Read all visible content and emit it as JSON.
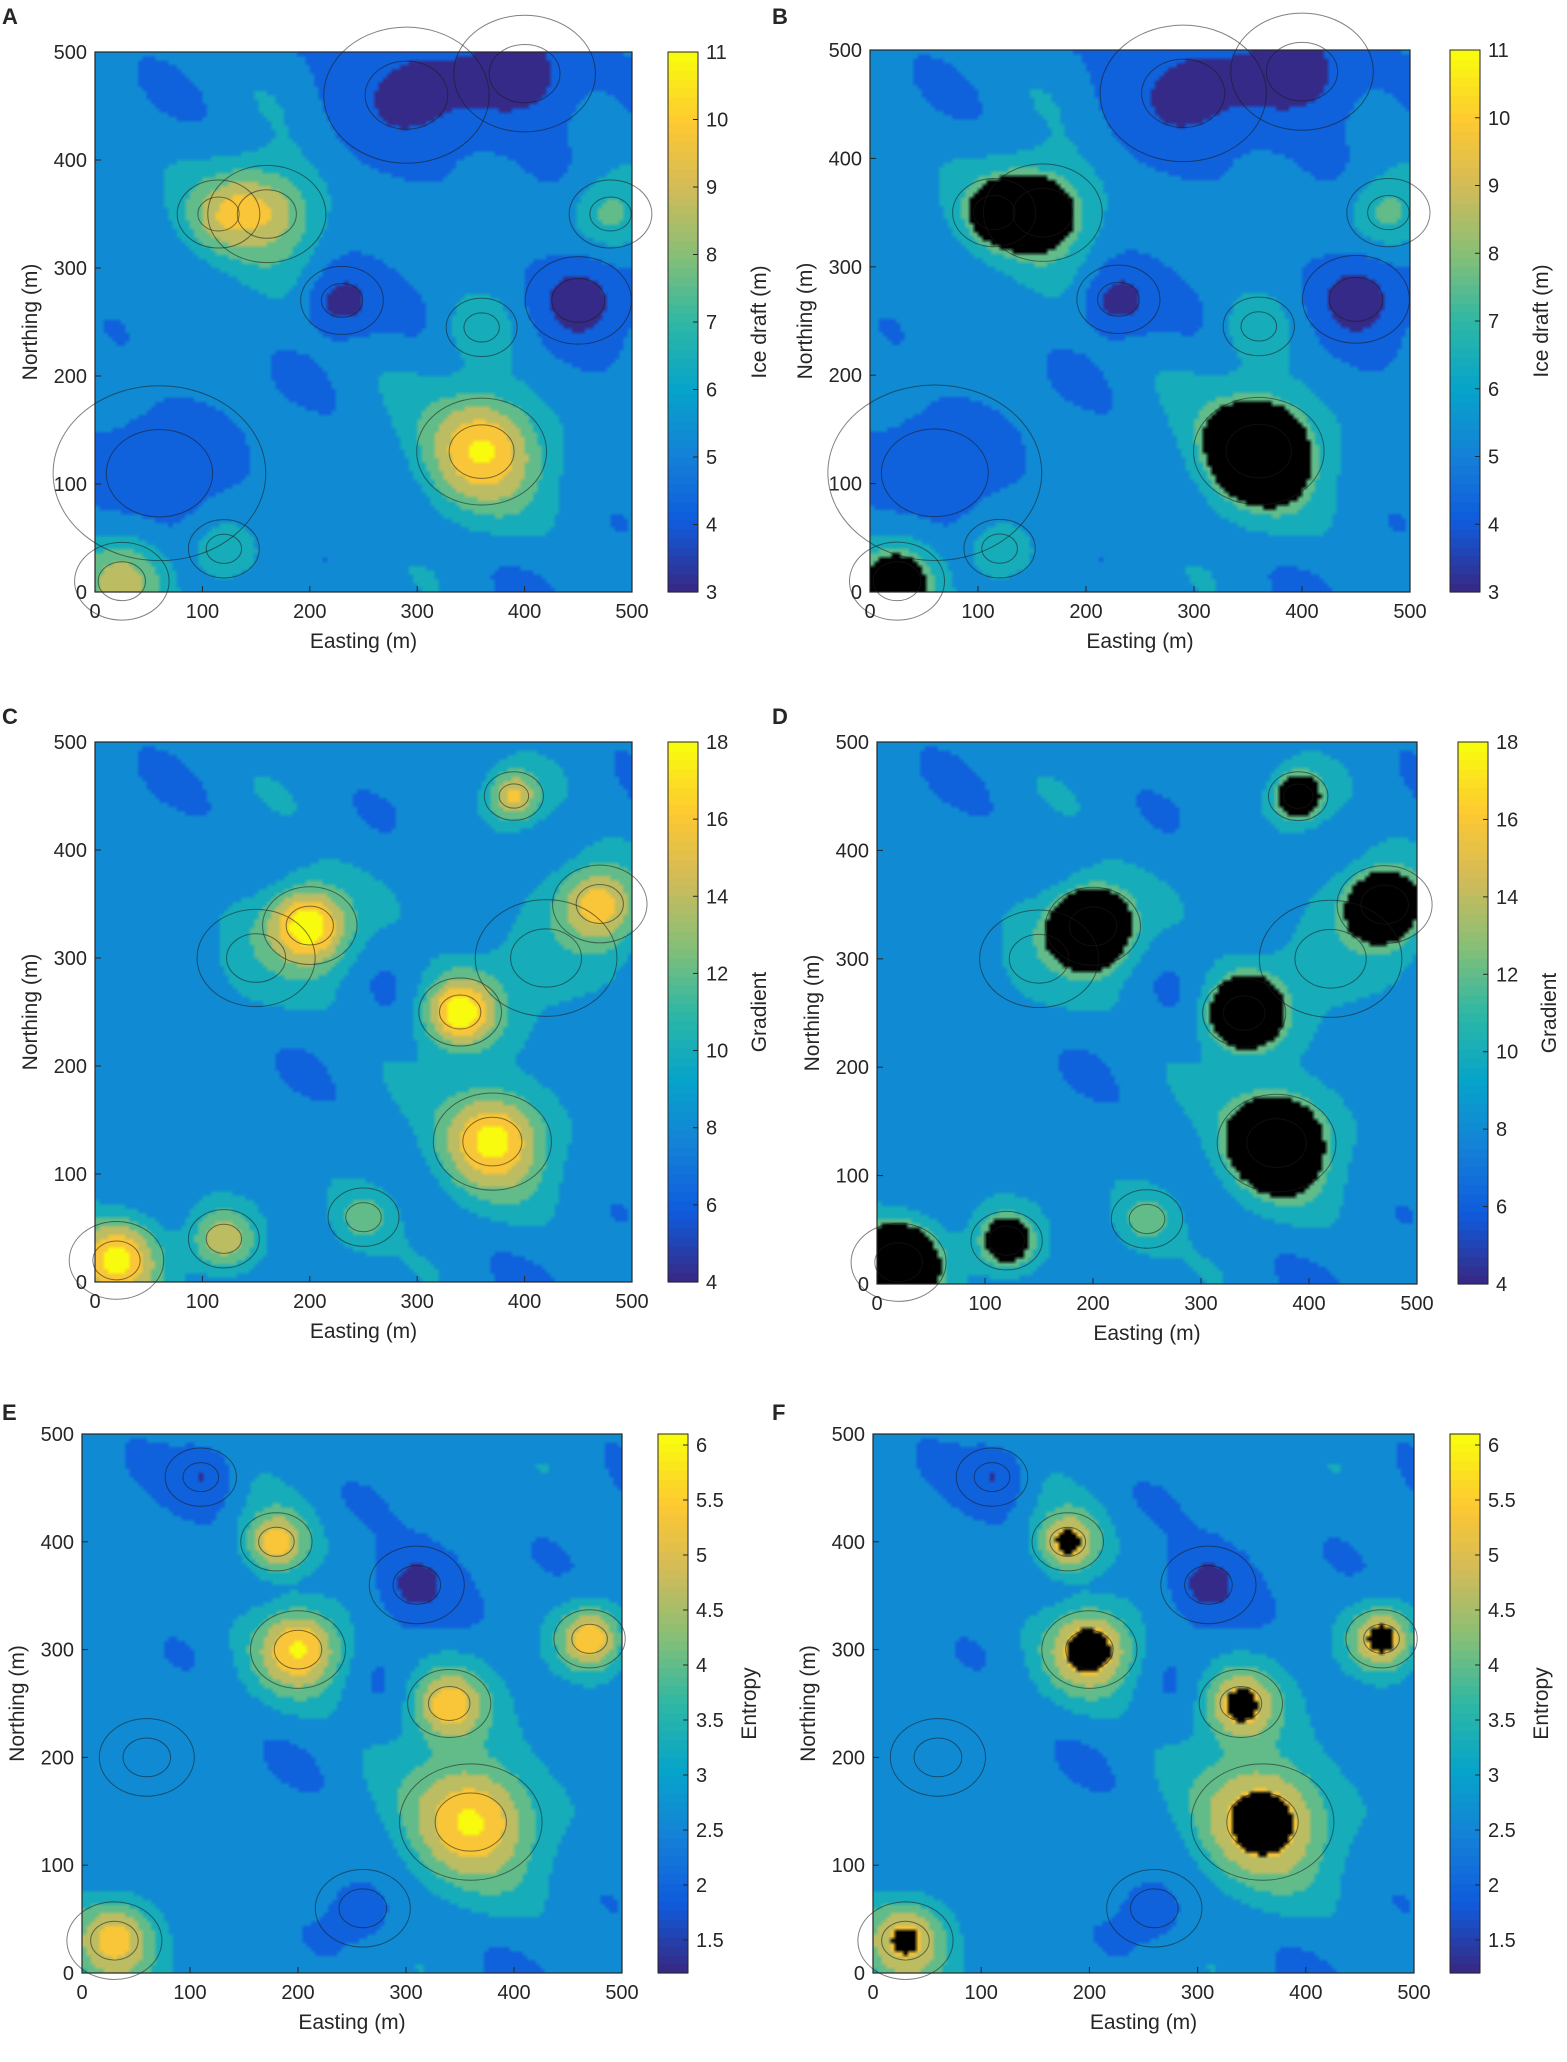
{
  "figure": {
    "panels": [
      {
        "letter": "A"
      },
      {
        "letter": "B"
      },
      {
        "letter": "C"
      },
      {
        "letter": "D"
      },
      {
        "letter": "E"
      },
      {
        "letter": "F"
      }
    ]
  },
  "colors": {
    "parula": [
      "#352a87",
      "#0f5cdd",
      "#1481d6",
      "#06a4ca",
      "#2eb7a4",
      "#87bf77",
      "#d1bb59",
      "#fec832",
      "#f9fb0e"
    ],
    "masked": "#000000",
    "contour_line": "#1a1a1a"
  },
  "chart_data": [
    {
      "type": "heatmap",
      "panel": "A",
      "xlabel": "Easting (m)",
      "ylabel": "Northing (m)",
      "xlim": [
        0,
        500
      ],
      "ylim": [
        0,
        500
      ],
      "xticks": [
        "0",
        "100",
        "200",
        "300",
        "400",
        "500"
      ],
      "yticks": [
        "0",
        "100",
        "200",
        "300",
        "400",
        "500"
      ],
      "colorbar": {
        "label": "Ice draft (m)",
        "ticks": [
          "3",
          "4",
          "5",
          "6",
          "7",
          "8",
          "9",
          "10",
          "11"
        ],
        "min": 3,
        "max": 11
      },
      "masked": false,
      "features": [
        {
          "x": 60,
          "y": 110,
          "s": 90,
          "v": 4.6
        },
        {
          "x": 160,
          "y": 350,
          "s": 50,
          "v": 8.6
        },
        {
          "x": 115,
          "y": 350,
          "s": 35,
          "v": 7.8
        },
        {
          "x": 360,
          "y": 130,
          "s": 55,
          "v": 10.2
        },
        {
          "x": 360,
          "y": 245,
          "s": 30,
          "v": 6.8
        },
        {
          "x": 25,
          "y": 10,
          "s": 40,
          "v": 9.0
        },
        {
          "x": 120,
          "y": 40,
          "s": 30,
          "v": 7.2
        },
        {
          "x": 480,
          "y": 350,
          "s": 35,
          "v": 7.3
        },
        {
          "x": 230,
          "y": 270,
          "s": 35,
          "v": 3.6
        },
        {
          "x": 450,
          "y": 270,
          "s": 45,
          "v": 3.4
        },
        {
          "x": 290,
          "y": 460,
          "s": 70,
          "v": 3.8
        },
        {
          "x": 400,
          "y": 480,
          "s": 60,
          "v": 3.7
        }
      ]
    },
    {
      "type": "heatmap",
      "panel": "B",
      "xlabel": "Easting (m)",
      "ylabel": "Northing (m)",
      "xlim": [
        0,
        500
      ],
      "ylim": [
        0,
        500
      ],
      "xticks": [
        "0",
        "100",
        "200",
        "300",
        "400",
        "500"
      ],
      "yticks": [
        "0",
        "100",
        "200",
        "300",
        "400",
        "500"
      ],
      "colorbar": {
        "label": "Ice draft (m)",
        "ticks": [
          "3",
          "4",
          "5",
          "6",
          "7",
          "8",
          "9",
          "10",
          "11"
        ],
        "min": 3,
        "max": 11
      },
      "masked": true,
      "mask_threshold": 7.5,
      "features": [
        {
          "x": 60,
          "y": 110,
          "s": 90,
          "v": 4.6
        },
        {
          "x": 160,
          "y": 350,
          "s": 50,
          "v": 8.6
        },
        {
          "x": 115,
          "y": 350,
          "s": 35,
          "v": 7.8
        },
        {
          "x": 360,
          "y": 130,
          "s": 55,
          "v": 10.2
        },
        {
          "x": 360,
          "y": 245,
          "s": 30,
          "v": 6.8
        },
        {
          "x": 25,
          "y": 10,
          "s": 40,
          "v": 9.0
        },
        {
          "x": 120,
          "y": 40,
          "s": 30,
          "v": 7.2
        },
        {
          "x": 480,
          "y": 350,
          "s": 35,
          "v": 7.3
        },
        {
          "x": 230,
          "y": 270,
          "s": 35,
          "v": 3.6
        },
        {
          "x": 450,
          "y": 270,
          "s": 45,
          "v": 3.4
        },
        {
          "x": 290,
          "y": 460,
          "s": 70,
          "v": 3.8
        },
        {
          "x": 400,
          "y": 480,
          "s": 60,
          "v": 3.7
        }
      ]
    },
    {
      "type": "heatmap",
      "panel": "C",
      "xlabel": "Easting (m)",
      "ylabel": "Northing (m)",
      "xlim": [
        0,
        500
      ],
      "ylim": [
        0,
        500
      ],
      "xticks": [
        "0",
        "100",
        "200",
        "300",
        "400",
        "500"
      ],
      "yticks": [
        "0",
        "100",
        "200",
        "300",
        "400",
        "500"
      ],
      "colorbar": {
        "label": "Gradient",
        "ticks": [
          "4",
          "6",
          "8",
          "10",
          "12",
          "14",
          "16",
          "18"
        ],
        "min": 4,
        "max": 18
      },
      "masked": false,
      "features": [
        {
          "x": 200,
          "y": 330,
          "s": 40,
          "v": 17
        },
        {
          "x": 340,
          "y": 250,
          "s": 35,
          "v": 17.5
        },
        {
          "x": 370,
          "y": 130,
          "s": 50,
          "v": 17
        },
        {
          "x": 470,
          "y": 350,
          "s": 40,
          "v": 15
        },
        {
          "x": 20,
          "y": 20,
          "s": 40,
          "v": 17
        },
        {
          "x": 120,
          "y": 40,
          "s": 30,
          "v": 14
        },
        {
          "x": 390,
          "y": 450,
          "s": 25,
          "v": 15
        },
        {
          "x": 250,
          "y": 60,
          "s": 30,
          "v": 12
        },
        {
          "x": 150,
          "y": 300,
          "s": 50,
          "v": 10
        },
        {
          "x": 420,
          "y": 300,
          "s": 60,
          "v": 10
        }
      ]
    },
    {
      "type": "heatmap",
      "panel": "D",
      "xlabel": "Easting (m)",
      "ylabel": "Northing (m)",
      "xlim": [
        0,
        500
      ],
      "ylim": [
        0,
        500
      ],
      "xticks": [
        "0",
        "100",
        "200",
        "300",
        "400",
        "500"
      ],
      "yticks": [
        "0",
        "100",
        "200",
        "300",
        "400",
        "500"
      ],
      "colorbar": {
        "label": "Gradient",
        "ticks": [
          "4",
          "6",
          "8",
          "10",
          "12",
          "14",
          "16",
          "18"
        ],
        "min": 4,
        "max": 18
      },
      "masked": true,
      "mask_threshold": 12,
      "features": [
        {
          "x": 200,
          "y": 330,
          "s": 40,
          "v": 17
        },
        {
          "x": 340,
          "y": 250,
          "s": 35,
          "v": 17.5
        },
        {
          "x": 370,
          "y": 130,
          "s": 50,
          "v": 17
        },
        {
          "x": 470,
          "y": 350,
          "s": 40,
          "v": 15
        },
        {
          "x": 20,
          "y": 20,
          "s": 40,
          "v": 17
        },
        {
          "x": 120,
          "y": 40,
          "s": 30,
          "v": 14
        },
        {
          "x": 390,
          "y": 450,
          "s": 25,
          "v": 15
        },
        {
          "x": 250,
          "y": 60,
          "s": 30,
          "v": 12
        },
        {
          "x": 150,
          "y": 300,
          "s": 50,
          "v": 10
        },
        {
          "x": 420,
          "y": 300,
          "s": 60,
          "v": 10
        }
      ]
    },
    {
      "type": "heatmap",
      "panel": "E",
      "xlabel": "Easting (m)",
      "ylabel": "Northing (m)",
      "xlim": [
        0,
        500
      ],
      "ylim": [
        0,
        500
      ],
      "xticks": [
        "0",
        "100",
        "200",
        "300",
        "400",
        "500"
      ],
      "yticks": [
        "0",
        "100",
        "200",
        "300",
        "400",
        "500"
      ],
      "colorbar": {
        "label": "Entropy",
        "ticks": [
          "1.5",
          "2",
          "2.5",
          "3",
          "3.5",
          "4",
          "4.5",
          "5",
          "5.5",
          "6"
        ],
        "min": 1.2,
        "max": 6.1
      },
      "masked": false,
      "features": [
        {
          "x": 360,
          "y": 140,
          "s": 60,
          "v": 5.6
        },
        {
          "x": 200,
          "y": 300,
          "s": 40,
          "v": 5.6
        },
        {
          "x": 180,
          "y": 400,
          "s": 30,
          "v": 5.3
        },
        {
          "x": 340,
          "y": 250,
          "s": 35,
          "v": 5.3
        },
        {
          "x": 30,
          "y": 30,
          "s": 40,
          "v": 5.2
        },
        {
          "x": 470,
          "y": 310,
          "s": 30,
          "v": 5.4
        },
        {
          "x": 310,
          "y": 360,
          "s": 40,
          "v": 1.6
        },
        {
          "x": 110,
          "y": 460,
          "s": 30,
          "v": 1.8
        },
        {
          "x": 60,
          "y": 200,
          "s": 40,
          "v": 2.5
        },
        {
          "x": 260,
          "y": 60,
          "s": 40,
          "v": 2.2
        }
      ]
    },
    {
      "type": "heatmap",
      "panel": "F",
      "xlabel": "Easting (m)",
      "ylabel": "Northing (m)",
      "xlim": [
        0,
        500
      ],
      "ylim": [
        0,
        500
      ],
      "xticks": [
        "0",
        "100",
        "200",
        "300",
        "400",
        "500"
      ],
      "yticks": [
        "0",
        "100",
        "200",
        "300",
        "400",
        "500"
      ],
      "colorbar": {
        "label": "Entropy",
        "ticks": [
          "1.5",
          "2",
          "2.5",
          "3",
          "3.5",
          "4",
          "4.5",
          "5",
          "5.5",
          "6"
        ],
        "min": 1.2,
        "max": 6.1
      },
      "masked": true,
      "mask_threshold": 5.0,
      "features": [
        {
          "x": 360,
          "y": 140,
          "s": 60,
          "v": 5.6
        },
        {
          "x": 200,
          "y": 300,
          "s": 40,
          "v": 5.6
        },
        {
          "x": 180,
          "y": 400,
          "s": 30,
          "v": 5.3
        },
        {
          "x": 340,
          "y": 250,
          "s": 35,
          "v": 5.3
        },
        {
          "x": 30,
          "y": 30,
          "s": 40,
          "v": 5.2
        },
        {
          "x": 470,
          "y": 310,
          "s": 30,
          "v": 5.4
        },
        {
          "x": 310,
          "y": 360,
          "s": 40,
          "v": 1.6
        },
        {
          "x": 110,
          "y": 460,
          "s": 30,
          "v": 1.8
        },
        {
          "x": 60,
          "y": 200,
          "s": 40,
          "v": 2.5
        },
        {
          "x": 260,
          "y": 60,
          "s": 40,
          "v": 2.2
        }
      ]
    }
  ]
}
